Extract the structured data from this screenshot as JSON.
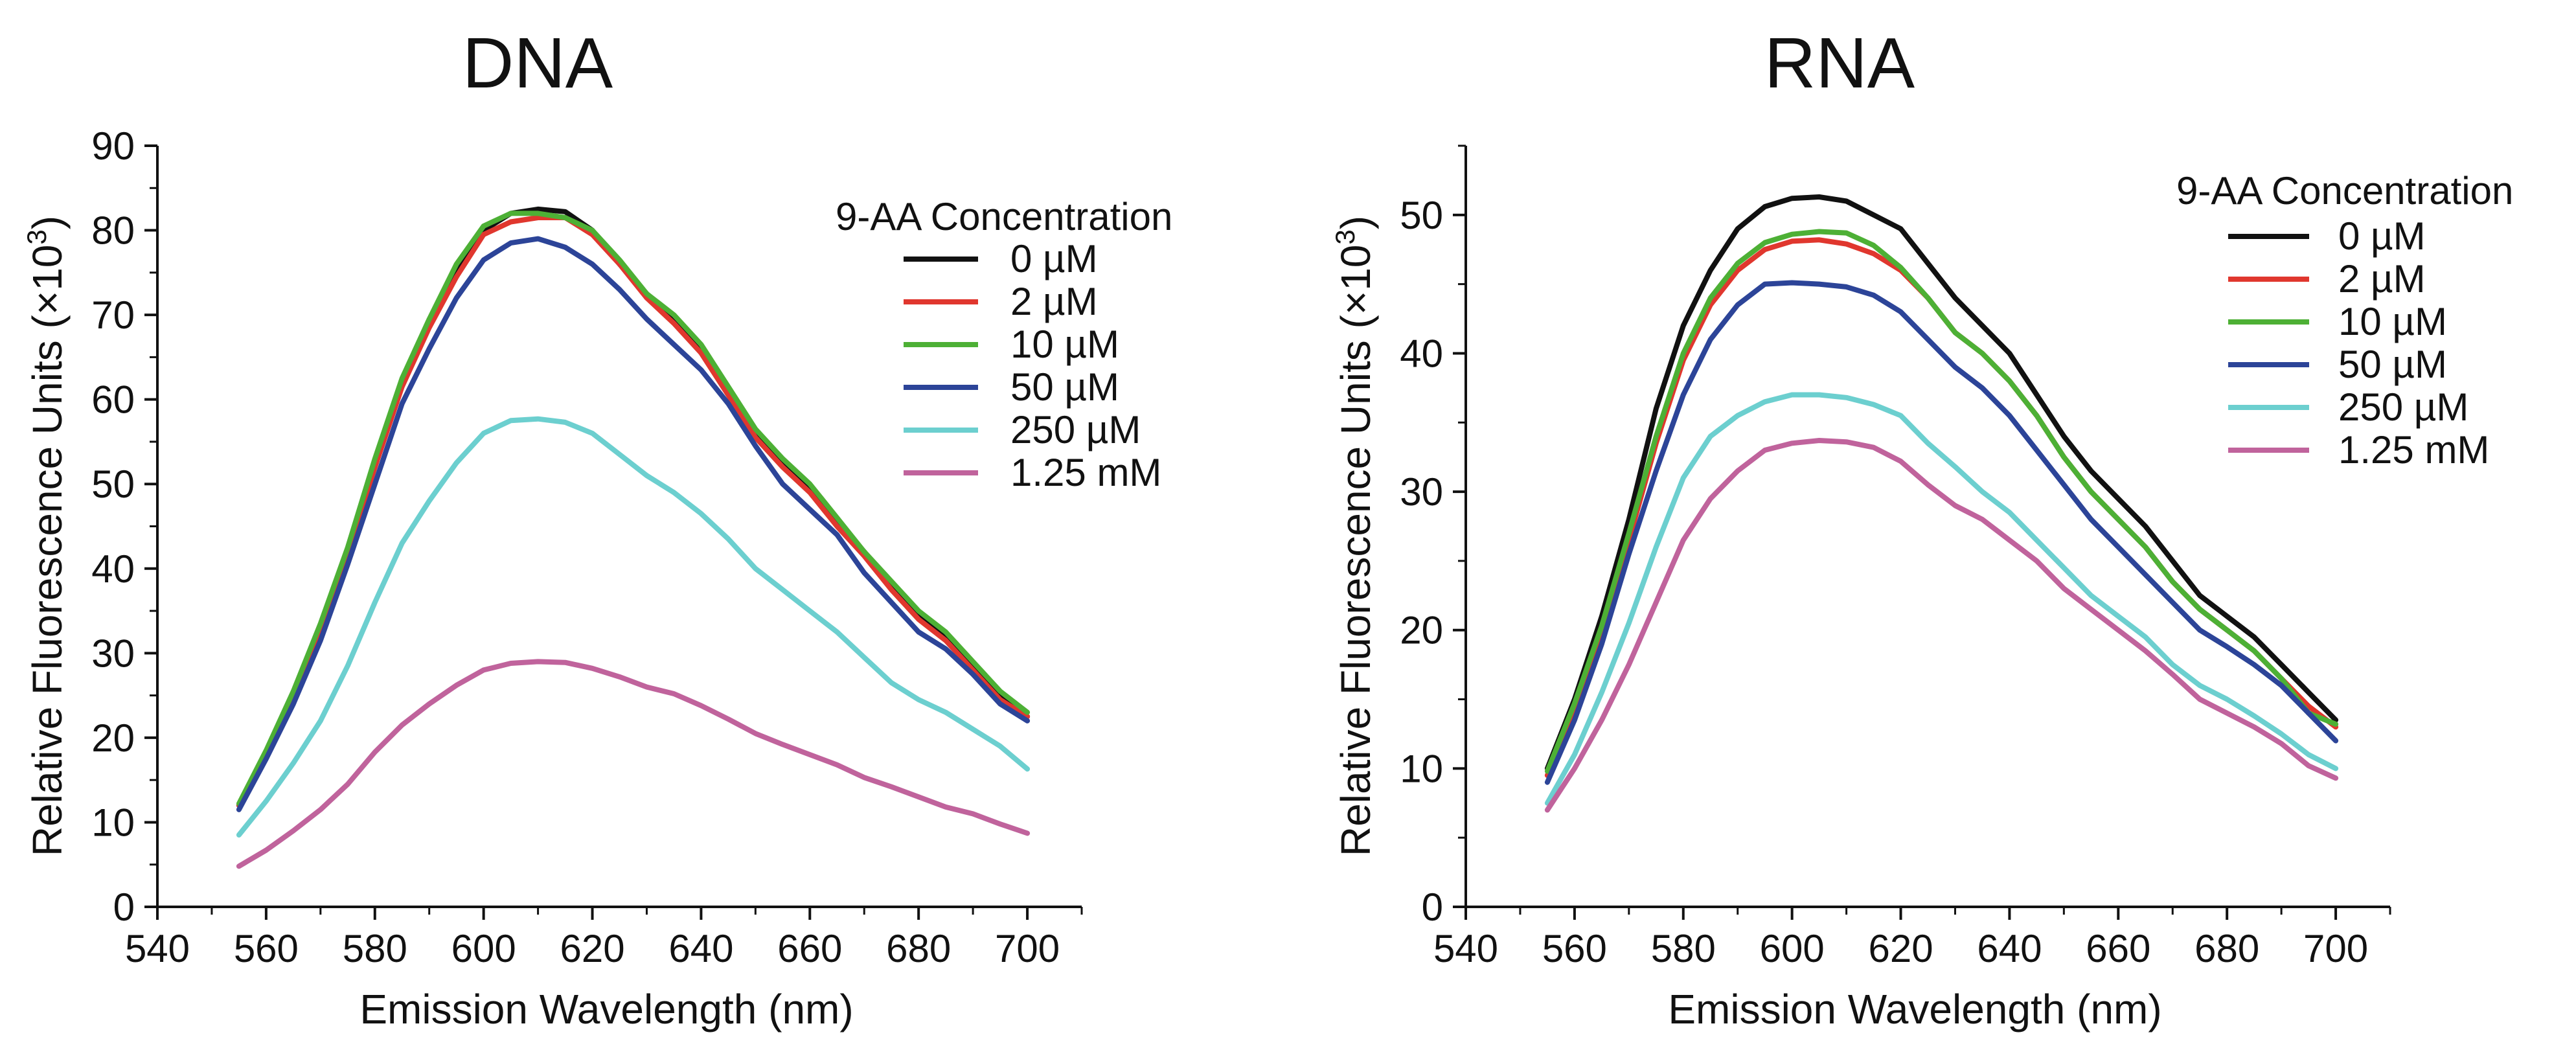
{
  "figure": {
    "sup": "3"
  },
  "chart_data": [
    {
      "type": "line",
      "title": "DNA",
      "xlabel": "Emission Wavelength (nm)",
      "ylabel_prefix": "Relative Fluorescence Units (×10",
      "ylabel_suffix": ")",
      "xlim": [
        540,
        710
      ],
      "ylim": [
        0,
        90
      ],
      "xticks": [
        540,
        560,
        580,
        600,
        620,
        640,
        660,
        680,
        700
      ],
      "yticks": [
        0,
        10,
        20,
        30,
        40,
        50,
        60,
        70,
        80,
        90
      ],
      "grid": false,
      "legend": {
        "title": "9-AA Concentration",
        "position": "top-right"
      },
      "x": [
        555,
        560,
        565,
        570,
        575,
        580,
        585,
        590,
        595,
        600,
        605,
        610,
        615,
        620,
        625,
        630,
        635,
        640,
        645,
        650,
        655,
        660,
        665,
        670,
        675,
        680,
        685,
        690,
        695,
        700
      ],
      "series": [
        {
          "name": "0 µM",
          "color": "#111111",
          "values": [
            12,
            18,
            25,
            33,
            42,
            52,
            62,
            69,
            75,
            80,
            82,
            82.5,
            82.2,
            80,
            76,
            72.5,
            69.5,
            66,
            61,
            56,
            52.5,
            49.5,
            45.5,
            42,
            38,
            34.5,
            32,
            28.5,
            25,
            22.5
          ]
        },
        {
          "name": "2 µM",
          "color": "#e0372e",
          "values": [
            12,
            18,
            25,
            33,
            42,
            52,
            61.5,
            68.5,
            74.5,
            79.5,
            81,
            81.5,
            81.5,
            79.5,
            76,
            72,
            69,
            65.5,
            60.5,
            55.5,
            52,
            49,
            45,
            41.5,
            37.5,
            34,
            31.5,
            28,
            24.5,
            22.5
          ]
        },
        {
          "name": "10 µM",
          "color": "#4db035",
          "values": [
            12.2,
            18.5,
            25.5,
            33.5,
            42.5,
            53,
            62.5,
            69.5,
            76,
            80.5,
            82,
            82,
            81.5,
            80,
            76.5,
            72.5,
            70,
            66.5,
            61.5,
            56.5,
            53,
            50,
            46,
            42,
            38.5,
            35,
            32.5,
            29,
            25.5,
            23
          ]
        },
        {
          "name": "50 µM",
          "color": "#2c4498",
          "values": [
            11.5,
            17.5,
            24,
            31.5,
            40.5,
            50,
            59.5,
            66,
            72,
            76.5,
            78.5,
            79,
            78,
            76,
            73,
            69.5,
            66.5,
            63.5,
            59.5,
            54.5,
            50,
            47,
            44,
            39.5,
            36,
            32.5,
            30.5,
            27.5,
            24,
            22
          ]
        },
        {
          "name": "250 µM",
          "color": "#6ccfcf",
          "values": [
            8.5,
            12.5,
            17,
            22,
            28.5,
            36,
            43,
            48,
            52.5,
            56,
            57.5,
            57.7,
            57.3,
            56,
            53.5,
            51,
            49,
            46.5,
            43.5,
            40,
            37.5,
            35,
            32.5,
            29.5,
            26.5,
            24.5,
            23,
            21,
            19,
            16.3
          ]
        },
        {
          "name": "1.25 mM",
          "color": "#c0639c",
          "values": [
            4.8,
            6.7,
            9,
            11.5,
            14.5,
            18.3,
            21.5,
            24,
            26.2,
            28,
            28.8,
            29,
            28.9,
            28.2,
            27.2,
            26,
            25.2,
            23.8,
            22.2,
            20.5,
            19.2,
            18,
            16.8,
            15.3,
            14.2,
            13,
            11.8,
            11,
            9.8,
            8.7
          ]
        }
      ]
    },
    {
      "type": "line",
      "title": "RNA",
      "xlabel": "Emission Wavelength (nm)",
      "ylabel_prefix": "Relative Fluorescence Units (×10",
      "ylabel_suffix": ")",
      "xlim": [
        540,
        710
      ],
      "ylim": [
        0,
        55
      ],
      "xticks": [
        540,
        560,
        580,
        600,
        620,
        640,
        660,
        680,
        700
      ],
      "yticks": [
        0,
        10,
        20,
        30,
        40,
        50
      ],
      "grid": false,
      "legend": {
        "title": "9-AA Concentration",
        "position": "top-right"
      },
      "x": [
        555,
        560,
        565,
        570,
        575,
        580,
        585,
        590,
        595,
        600,
        605,
        610,
        615,
        620,
        625,
        630,
        635,
        640,
        645,
        650,
        655,
        660,
        665,
        670,
        675,
        680,
        685,
        690,
        695,
        700
      ],
      "series": [
        {
          "name": "0 µM",
          "color": "#111111",
          "values": [
            10,
            15,
            21,
            28,
            36,
            42,
            46,
            49,
            50.6,
            51.2,
            51.3,
            51,
            50,
            49,
            46.5,
            44,
            42,
            40,
            37,
            34,
            31.5,
            29.5,
            27.5,
            25,
            22.5,
            21,
            19.5,
            17.5,
            15.5,
            13.5
          ]
        },
        {
          "name": "2 µM",
          "color": "#e0372e",
          "values": [
            9.5,
            14.5,
            20,
            26.5,
            33.5,
            39.5,
            43.5,
            46,
            47.5,
            48.1,
            48.2,
            47.9,
            47.2,
            46,
            44,
            41.5,
            40,
            38,
            35.5,
            32.5,
            30,
            28,
            26,
            23.5,
            21.5,
            20,
            18.5,
            16.5,
            14.5,
            13
          ]
        },
        {
          "name": "10 µM",
          "color": "#4db035",
          "values": [
            9.8,
            14.7,
            20.3,
            27,
            34,
            40,
            44,
            46.5,
            48,
            48.6,
            48.8,
            48.7,
            47.8,
            46.2,
            44,
            41.5,
            40,
            38,
            35.5,
            32.5,
            30,
            28,
            26,
            23.5,
            21.5,
            20,
            18.5,
            16.5,
            14,
            13.2
          ]
        },
        {
          "name": "50 µM",
          "color": "#2c4498",
          "values": [
            9,
            13.5,
            19,
            25.5,
            31.5,
            37,
            41,
            43.5,
            45,
            45.1,
            45,
            44.8,
            44.2,
            43,
            41,
            39,
            37.5,
            35.5,
            33,
            30.5,
            28,
            26,
            24,
            22,
            20,
            18.8,
            17.5,
            16,
            14,
            12
          ]
        },
        {
          "name": "250 µM",
          "color": "#6ccfcf",
          "values": [
            7.5,
            11,
            15.5,
            20.5,
            26,
            31,
            34,
            35.5,
            36.5,
            37,
            37,
            36.8,
            36.3,
            35.5,
            33.5,
            31.8,
            30,
            28.5,
            26.5,
            24.5,
            22.5,
            21,
            19.5,
            17.5,
            16,
            15,
            13.8,
            12.5,
            11,
            10
          ]
        },
        {
          "name": "1.25 mM",
          "color": "#c0639c",
          "values": [
            7,
            10,
            13.5,
            17.5,
            22,
            26.5,
            29.5,
            31.5,
            33,
            33.5,
            33.7,
            33.6,
            33.2,
            32.2,
            30.5,
            29,
            28,
            26.5,
            25,
            23,
            21.5,
            20,
            18.5,
            16.8,
            15,
            14,
            13,
            11.8,
            10.2,
            9.3
          ]
        }
      ]
    }
  ]
}
